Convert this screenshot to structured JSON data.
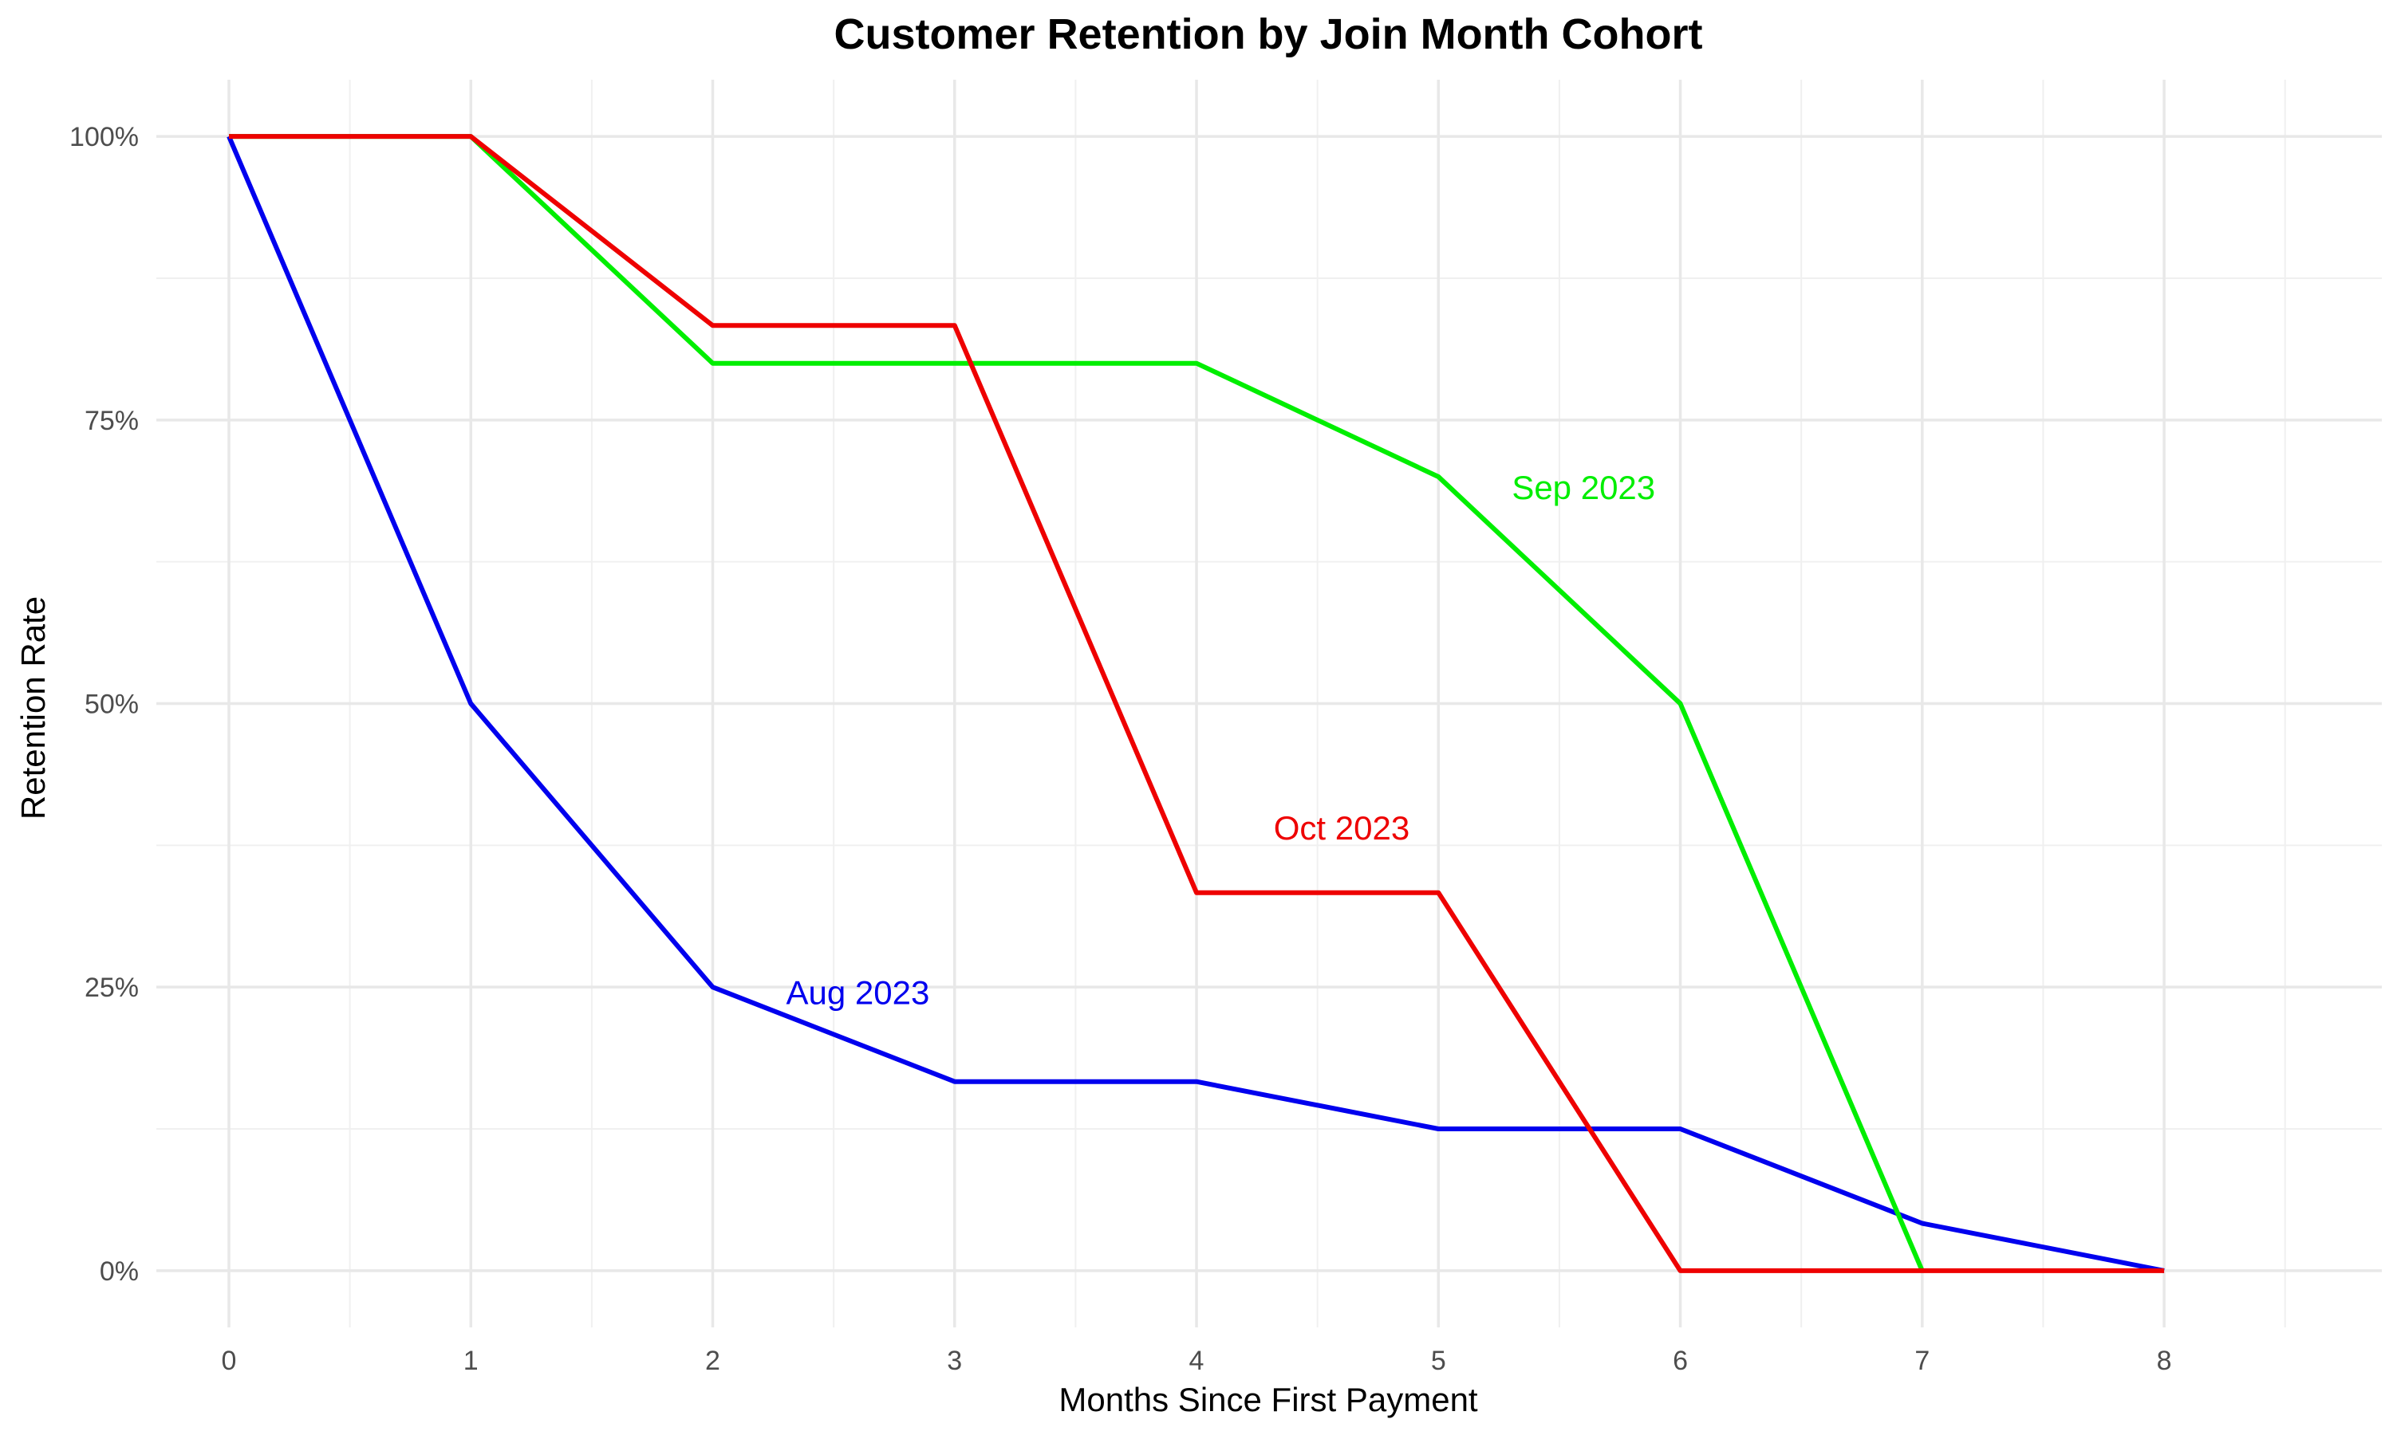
{
  "chart_data": {
    "type": "line",
    "title": "Customer Retention by Join Month Cohort",
    "xlabel": "Months Since First Payment",
    "ylabel": "Retention Rate",
    "xlim": [
      -0.3,
      8.9
    ],
    "ylim": [
      -0.05,
      1.05
    ],
    "x_ticks": [
      0,
      1,
      2,
      3,
      4,
      5,
      6,
      7,
      8
    ],
    "x_tick_labels": [
      "0",
      "1",
      "2",
      "3",
      "4",
      "5",
      "6",
      "7",
      "8"
    ],
    "y_ticks": [
      0,
      0.25,
      0.5,
      0.75,
      1.0
    ],
    "y_tick_labels": [
      "0%",
      "25%",
      "50%",
      "75%",
      "100%"
    ],
    "grid": true,
    "legend": "none",
    "series": [
      {
        "name": "Aug 2023",
        "color": "#0000EE",
        "x": [
          0,
          1,
          2,
          3,
          4,
          5,
          6,
          7,
          8
        ],
        "values": [
          1.0,
          0.5,
          0.25,
          0.1667,
          0.1667,
          0.125,
          0.125,
          0.0417,
          0.0
        ],
        "label_at": [
          2.6,
          0.245
        ]
      },
      {
        "name": "Sep 2023",
        "color": "#00EE00",
        "x": [
          0,
          1,
          2,
          3,
          4,
          5,
          6,
          7
        ],
        "values": [
          1.0,
          1.0,
          0.8,
          0.8,
          0.8,
          0.7,
          0.5,
          0.0
        ],
        "label_at": [
          5.6,
          0.69
        ]
      },
      {
        "name": "Oct 2023",
        "color": "#EE0000",
        "x": [
          0,
          1,
          2,
          3,
          4,
          5,
          6,
          7,
          8
        ],
        "values": [
          1.0,
          1.0,
          0.8333,
          0.8333,
          0.3333,
          0.3333,
          0.0,
          0.0,
          0.0
        ],
        "label_at": [
          4.6,
          0.39
        ]
      }
    ]
  }
}
